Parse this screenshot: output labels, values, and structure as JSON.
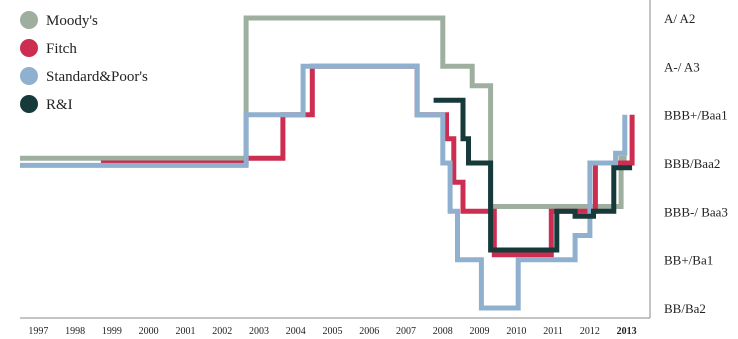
{
  "chart_data": {
    "type": "line",
    "title": "",
    "xlabel": "",
    "ylabel": "",
    "interpolation": "step",
    "x_ticks": [
      "1997",
      "1998",
      "1999",
      "2000",
      "2001",
      "2002",
      "2003",
      "2004",
      "2005",
      "2006",
      "2007",
      "2008",
      "2009",
      "2010",
      "2011",
      "2012",
      "2013"
    ],
    "x_tick_highlight": "2013",
    "x_range": [
      1996.5,
      2013.5
    ],
    "y_levels": [
      "BB/Ba2",
      "BB+/Ba1",
      "BBB-/ Baa3",
      "BBB/Baa2",
      "BBB+/Baa1",
      "A-/ A3",
      "A/ A2"
    ],
    "y_range": [
      0,
      6
    ],
    "legend_position": "top-left",
    "series": [
      {
        "name": "Moody's",
        "color": "#9eaf9f",
        "x": [
          1996.5,
          2002.65,
          2002.65,
          2008.0,
          2008.0,
          2008.8,
          2008.8,
          2009.3,
          2009.3,
          2012.85,
          2012.85,
          2013.0
        ],
        "y": [
          3.1,
          3.1,
          6.0,
          6.0,
          5.0,
          5.0,
          4.6,
          4.6,
          2.1,
          2.1,
          3.1,
          3.1
        ]
      },
      {
        "name": "Fitch",
        "color": "#cc2d50",
        "x": [
          1998.7,
          2002.65,
          2002.65,
          2003.65,
          2003.65,
          2004.45,
          2004.45,
          2007.3,
          2007.3,
          2008.1,
          2008.1,
          2008.3,
          2008.3,
          2008.55,
          2008.55,
          2009.4,
          2009.4,
          2010.95,
          2010.95,
          2011.6,
          2011.6,
          2012.15,
          2012.15,
          2012.85,
          2012.85,
          2013.0,
          2013.0,
          2013.15,
          2013.15
        ],
        "y": [
          3.0,
          3.0,
          3.1,
          3.1,
          4.0,
          4.0,
          5.0,
          5.0,
          4.0,
          4.0,
          3.5,
          3.5,
          2.6,
          2.6,
          2.0,
          2.0,
          1.1,
          1.1,
          2.0,
          2.0,
          2.0,
          2.0,
          3.0,
          3.0,
          3.0,
          3.0,
          3.0,
          3.0,
          4.0
        ]
      },
      {
        "name": "Standard&Poor's",
        "color": "#8fb0cf",
        "x": [
          1996.5,
          2002.65,
          2002.65,
          2004.2,
          2004.2,
          2007.3,
          2007.3,
          2008.0,
          2008.0,
          2008.2,
          2008.2,
          2008.4,
          2008.4,
          2009.05,
          2009.05,
          2009.3,
          2009.3,
          2010.05,
          2010.05,
          2011.6,
          2011.6,
          2012.0,
          2012.0,
          2012.7,
          2012.7,
          2012.95,
          2012.95
        ],
        "y": [
          2.95,
          2.95,
          4.0,
          4.0,
          5.0,
          5.0,
          4.0,
          4.0,
          3.0,
          3.0,
          2.0,
          2.0,
          1.0,
          1.0,
          0.0,
          0.0,
          0.0,
          0.0,
          1.0,
          1.0,
          1.5,
          1.5,
          3.0,
          3.0,
          3.2,
          3.2,
          4.0
        ]
      },
      {
        "name": "R&I",
        "color": "#163a3a",
        "x": [
          2007.75,
          2008.55,
          2008.55,
          2008.7,
          2008.7,
          2009.3,
          2009.3,
          2011.1,
          2011.1,
          2011.6,
          2011.6,
          2012.1,
          2012.1,
          2012.65,
          2012.65,
          2013.15
        ],
        "y": [
          4.3,
          4.3,
          3.5,
          3.5,
          3.0,
          3.0,
          1.2,
          1.2,
          2.0,
          2.0,
          1.9,
          1.9,
          2.0,
          2.0,
          2.9,
          2.9
        ]
      }
    ]
  }
}
